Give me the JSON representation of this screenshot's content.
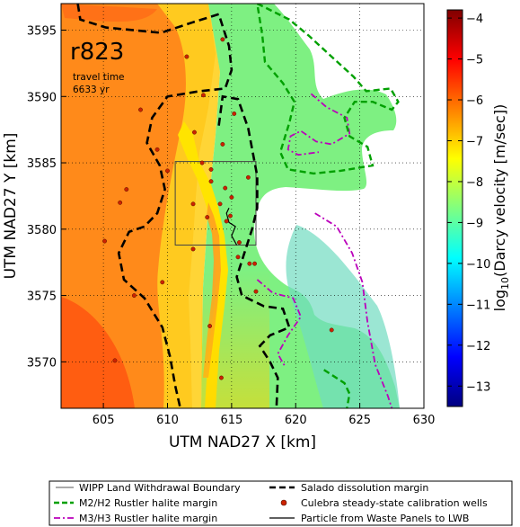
{
  "chart_data": {
    "type": "heatmap",
    "panel_label": "r823",
    "annotation_lines": [
      "travel time",
      "6633 yr"
    ],
    "xlabel": "UTM NAD27 X [km]",
    "ylabel": "UTM NAD27 Y [km]",
    "xlim": [
      601.7,
      630
    ],
    "ylim": [
      3566.5,
      3597
    ],
    "x_ticks": [
      605,
      610,
      615,
      620,
      625,
      630
    ],
    "y_ticks": [
      3570,
      3575,
      3580,
      3585,
      3590,
      3595
    ],
    "grid": true,
    "colorbar": {
      "label_prefix": "log",
      "label_sub": "10",
      "label_rest": "(Darcy velocity [m/sec])",
      "range": [
        -13.5,
        -3.8
      ],
      "ticks": [
        -4,
        -5,
        -6,
        -7,
        -8,
        -9,
        -10,
        -11,
        -12,
        -13
      ],
      "colors": [
        "#800000",
        "#ff0000",
        "#ff8000",
        "#ffff00",
        "#80ff80",
        "#00ffff",
        "#0080ff",
        "#0000ff",
        "#000080"
      ]
    },
    "wipp_boundary": [
      [
        610.6,
        3578.8
      ],
      [
        616.9,
        3578.8
      ],
      [
        616.9,
        3585.1
      ],
      [
        610.6,
        3585.1
      ]
    ],
    "salado_margin": [
      [
        [
          603.0,
          3597.0
        ],
        [
          603.2,
          3595.8
        ],
        [
          605.2,
          3595.2
        ],
        [
          609.5,
          3594.8
        ],
        [
          612.0,
          3595.6
        ],
        [
          614.0,
          3596.2
        ],
        [
          614.8,
          3593.8
        ],
        [
          615.0,
          3592.0
        ],
        [
          614.5,
          3590.6
        ],
        [
          612.5,
          3590.4
        ],
        [
          610.0,
          3590.0
        ],
        [
          608.8,
          3588.4
        ],
        [
          608.4,
          3586.5
        ],
        [
          609.4,
          3584.8
        ],
        [
          609.8,
          3583.0
        ],
        [
          609.2,
          3581.2
        ],
        [
          608.2,
          3580.2
        ],
        [
          607.0,
          3579.8
        ],
        [
          606.2,
          3578.2
        ],
        [
          606.6,
          3576.2
        ],
        [
          608.2,
          3574.8
        ],
        [
          609.6,
          3572.6
        ],
        [
          610.2,
          3570.4
        ],
        [
          610.6,
          3568.2
        ],
        [
          611.0,
          3566.5
        ]
      ],
      [
        [
          614.0,
          3587.8
        ],
        [
          614.3,
          3590.0
        ],
        [
          615.5,
          3589.8
        ],
        [
          616.3,
          3587.6
        ],
        [
          617.0,
          3584.0
        ],
        [
          617.0,
          3581.6
        ],
        [
          616.6,
          3580.0
        ],
        [
          616.0,
          3578.2
        ],
        [
          615.4,
          3576.4
        ],
        [
          615.8,
          3575.0
        ],
        [
          617.5,
          3574.2
        ],
        [
          619.0,
          3574.0
        ],
        [
          619.5,
          3572.6
        ],
        [
          618.0,
          3572.0
        ],
        [
          617.2,
          3571.2
        ],
        [
          618.0,
          3570.0
        ],
        [
          618.6,
          3568.8
        ],
        [
          618.5,
          3566.5
        ]
      ]
    ],
    "m2h2_margin": [
      [
        [
          617.0,
          3597.0
        ],
        [
          619.5,
          3595.8
        ],
        [
          621.0,
          3594.6
        ],
        [
          622.8,
          3593.0
        ],
        [
          624.5,
          3591.5
        ],
        [
          625.5,
          3590.4
        ],
        [
          627.4,
          3590.6
        ],
        [
          628.0,
          3589.6
        ],
        [
          627.5,
          3589.0
        ],
        [
          626.0,
          3589.6
        ],
        [
          624.6,
          3589.6
        ],
        [
          623.8,
          3588.4
        ],
        [
          624.2,
          3587.0
        ],
        [
          625.6,
          3586.2
        ],
        [
          626.0,
          3584.8
        ],
        [
          623.5,
          3584.4
        ],
        [
          621.4,
          3584.2
        ],
        [
          619.4,
          3584.5
        ],
        [
          618.8,
          3585.8
        ],
        [
          619.5,
          3588.0
        ],
        [
          619.9,
          3589.6
        ],
        [
          619.0,
          3591.0
        ],
        [
          617.6,
          3592.6
        ],
        [
          617.4,
          3594.6
        ],
        [
          617.0,
          3597.0
        ]
      ],
      [
        [
          622.2,
          3569.4
        ],
        [
          623.8,
          3568.4
        ],
        [
          624.2,
          3567.6
        ],
        [
          624.0,
          3566.5
        ]
      ]
    ],
    "m3h3_margin": [
      [
        [
          621.2,
          3590.2
        ],
        [
          622.4,
          3589.2
        ],
        [
          624.0,
          3588.4
        ],
        [
          624.2,
          3587.2
        ],
        [
          622.8,
          3586.4
        ],
        [
          621.6,
          3586.6
        ],
        [
          620.4,
          3587.4
        ],
        [
          619.6,
          3587.0
        ],
        [
          619.4,
          3586.0
        ],
        [
          620.2,
          3585.6
        ],
        [
          621.8,
          3585.8
        ]
      ],
      [
        [
          621.5,
          3581.2
        ],
        [
          623.2,
          3580.2
        ],
        [
          624.4,
          3578.2
        ],
        [
          625.2,
          3576.0
        ],
        [
          625.6,
          3573.0
        ],
        [
          626.2,
          3569.8
        ],
        [
          627.2,
          3567.4
        ],
        [
          627.5,
          3566.5
        ]
      ],
      [
        [
          617.0,
          3576.2
        ],
        [
          618.2,
          3575.2
        ],
        [
          619.8,
          3574.8
        ],
        [
          620.4,
          3573.4
        ],
        [
          619.4,
          3572.0
        ],
        [
          618.6,
          3570.6
        ],
        [
          619.2,
          3569.6
        ]
      ]
    ],
    "wells": [
      [
        605.1,
        3579.1
      ],
      [
        606.3,
        3582.0
      ],
      [
        606.8,
        3583.0
      ],
      [
        607.9,
        3589.0
      ],
      [
        609.2,
        3586.0
      ],
      [
        609.6,
        3576.0
      ],
      [
        605.9,
        3570.1
      ],
      [
        607.4,
        3575.0
      ],
      [
        611.5,
        3593.0
      ],
      [
        612.8,
        3590.1
      ],
      [
        614.3,
        3594.3
      ],
      [
        612.1,
        3587.3
      ],
      [
        613.4,
        3583.6
      ],
      [
        614.5,
        3583.1
      ],
      [
        614.1,
        3581.9
      ],
      [
        615.0,
        3582.4
      ],
      [
        614.9,
        3581.0
      ],
      [
        613.1,
        3580.9
      ],
      [
        612.0,
        3581.9
      ],
      [
        612.7,
        3585.0
      ],
      [
        613.4,
        3584.5
      ],
      [
        614.3,
        3586.4
      ],
      [
        610.0,
        3584.4
      ],
      [
        616.3,
        3583.9
      ],
      [
        612.0,
        3578.5
      ],
      [
        615.6,
        3579.0
      ],
      [
        616.4,
        3577.4
      ],
      [
        616.8,
        3577.4
      ],
      [
        615.5,
        3577.9
      ],
      [
        616.9,
        3575.3
      ],
      [
        613.3,
        3572.7
      ],
      [
        615.2,
        3588.7
      ],
      [
        614.2,
        3568.8
      ],
      [
        622.8,
        3572.4
      ],
      [
        614.6,
        3580.6
      ]
    ],
    "particle_path": [
      [
        614.8,
        3581.6
      ],
      [
        614.6,
        3581.2
      ],
      [
        614.8,
        3580.5
      ],
      [
        615.3,
        3580.2
      ],
      [
        615.0,
        3579.5
      ],
      [
        615.4,
        3578.8
      ]
    ],
    "legend": [
      {
        "label": "WIPP Land Withdrawal Boundary",
        "style": "thin-black-line",
        "color": "#555555"
      },
      {
        "label": "Salado dissolution margin",
        "style": "black-dashed",
        "color": "#000000"
      },
      {
        "label": "M2/H2 Rustler halite margin",
        "style": "green-dashed",
        "color": "#00a000"
      },
      {
        "label": "Culebra steady-state calibration wells",
        "style": "red-dot",
        "color": "#cc2200"
      },
      {
        "label": "M3/H3 Rustler halite margin",
        "style": "magenta-dashdot",
        "color": "#bb00bb"
      },
      {
        "label": "Particle from Waste Panels to LWB",
        "style": "black-line",
        "color": "#000000"
      }
    ],
    "legend_position": "bottom"
  }
}
